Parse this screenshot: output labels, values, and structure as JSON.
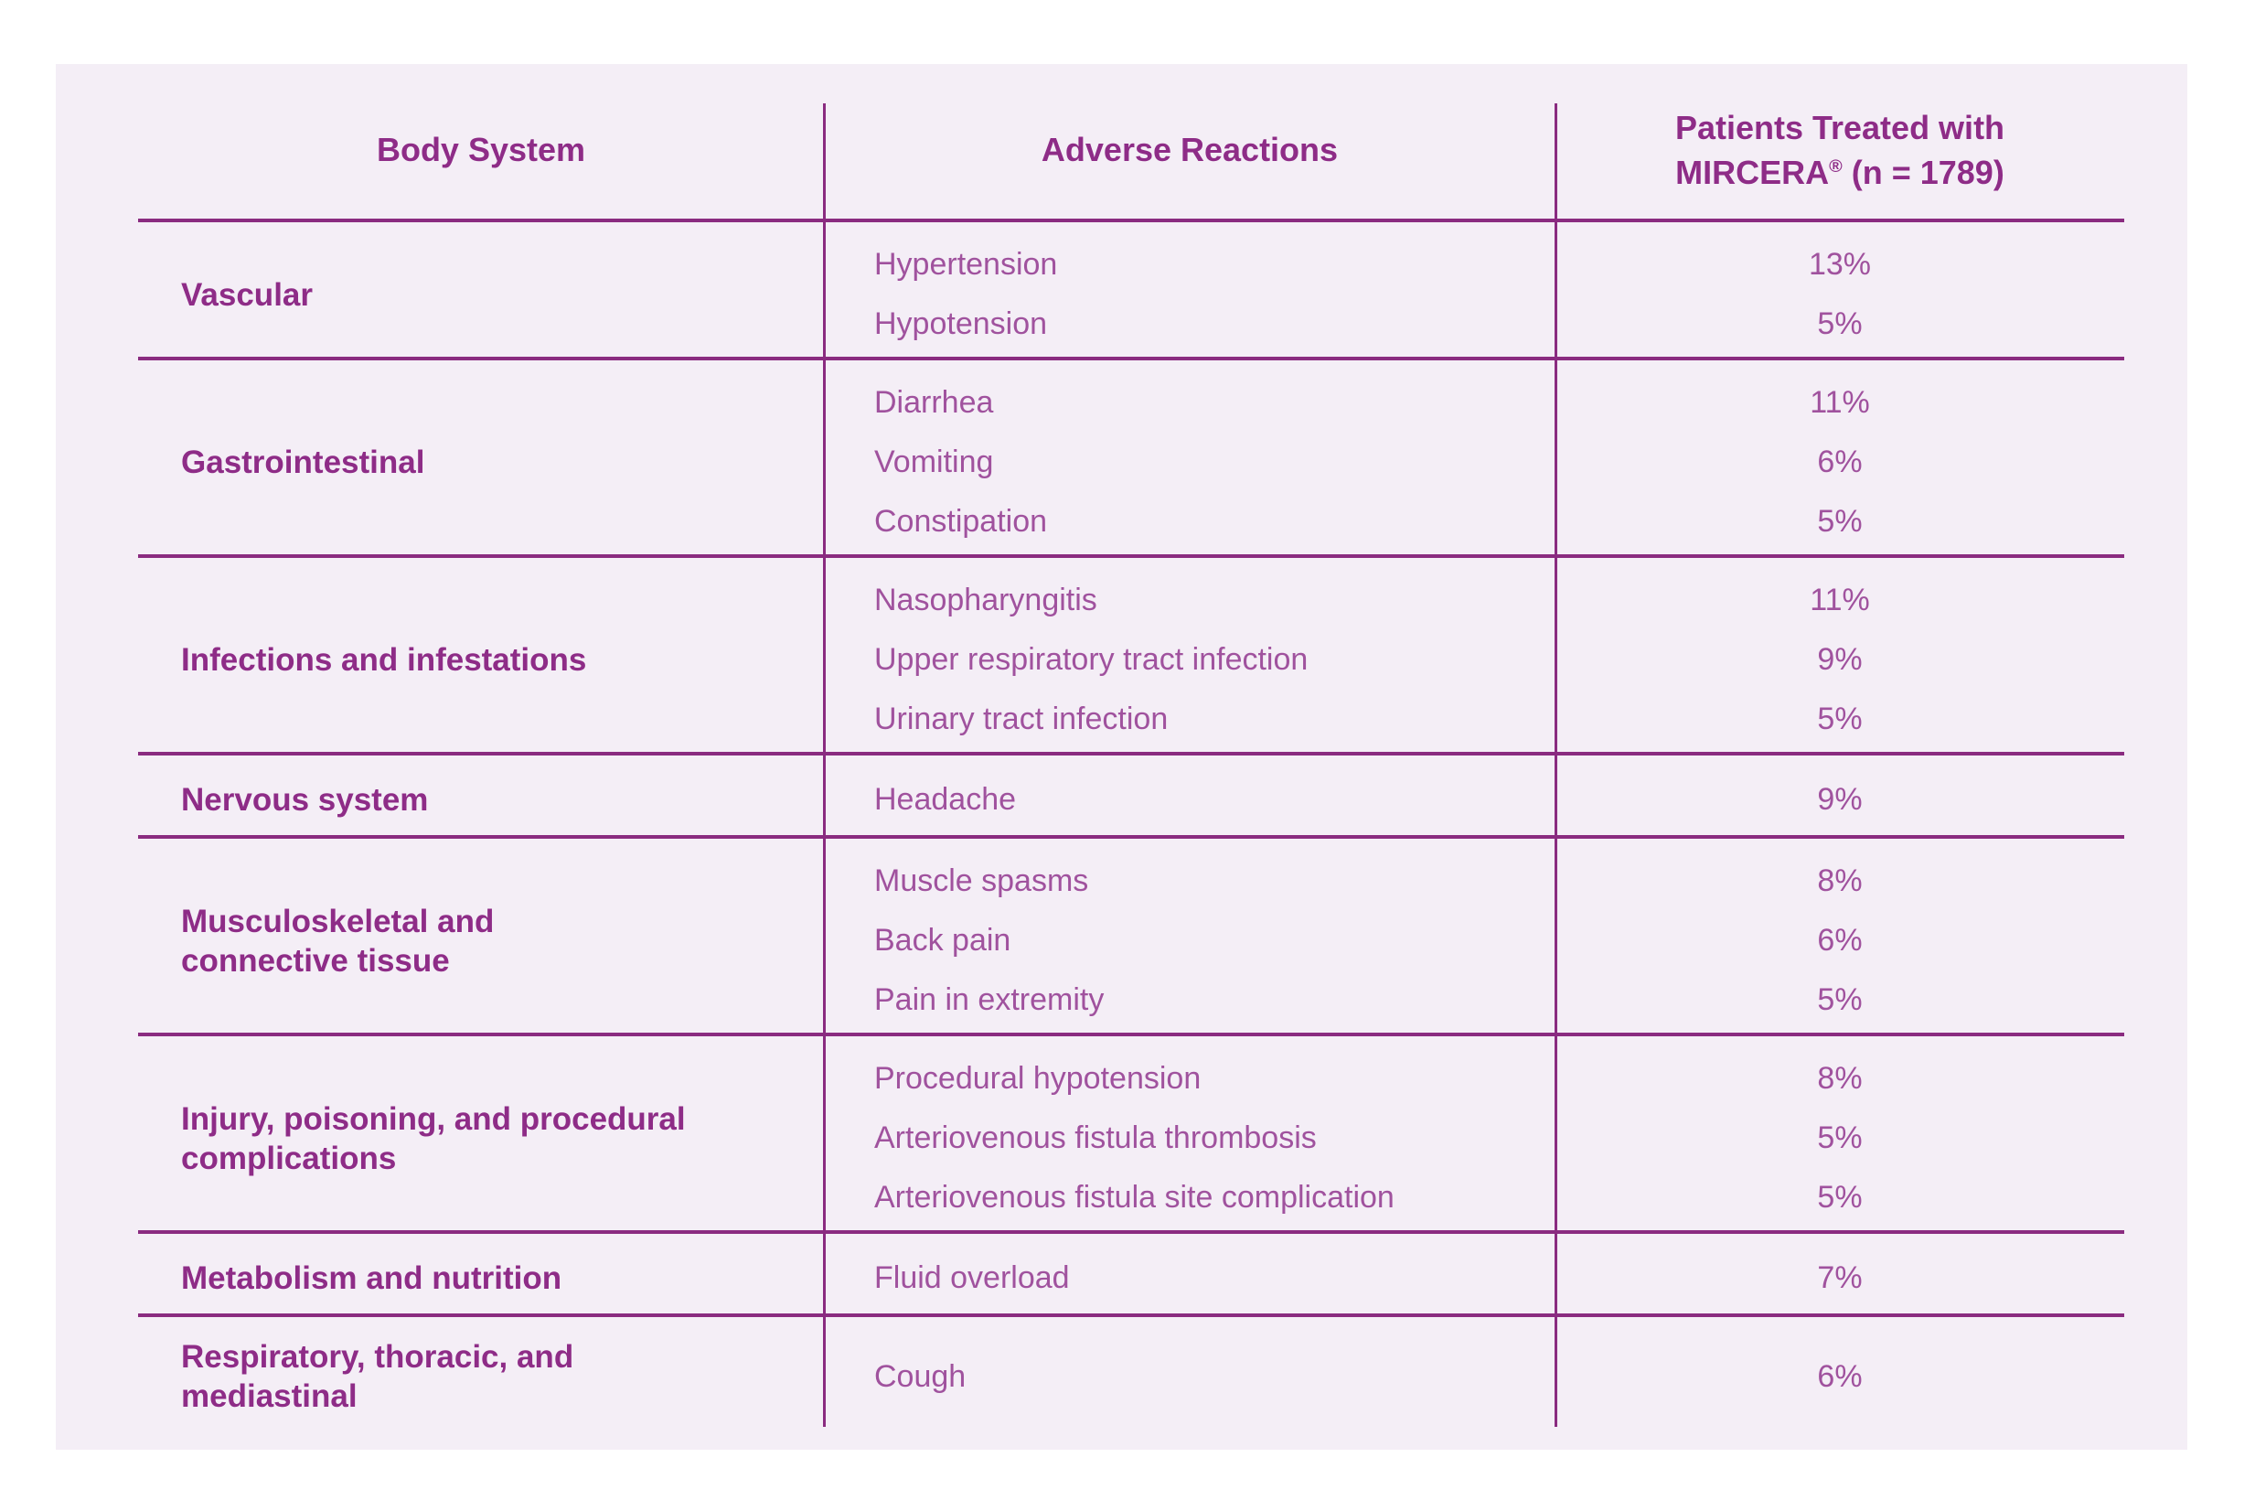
{
  "colors": {
    "page_background": "#ffffff",
    "panel_background": "#f4eef6",
    "line": "#8a2b80",
    "heading_text": "#8e2c87",
    "body_text": "#a0529e"
  },
  "table": {
    "header": {
      "body_system": "Body System",
      "adverse_reactions": "Adverse Reactions",
      "patients_line1": "Patients Treated with",
      "patients_drug": "MIRCERA",
      "patients_reg_mark": "®",
      "patients_line2_rest": " (n = 1789)"
    },
    "rows": [
      {
        "body_system": "Vascular",
        "reactions": [
          "Hypertension",
          "Hypotension"
        ],
        "percentages": [
          "13%",
          "5%"
        ]
      },
      {
        "body_system": "Gastrointestinal",
        "reactions": [
          "Diarrhea",
          "Vomiting",
          "Constipation"
        ],
        "percentages": [
          "11%",
          "6%",
          "5%"
        ]
      },
      {
        "body_system": "Infections and infestations",
        "reactions": [
          "Nasopharyngitis",
          "Upper respiratory tract infection",
          "Urinary tract infection"
        ],
        "percentages": [
          "11%",
          "9%",
          "5%"
        ]
      },
      {
        "body_system": "Nervous system",
        "reactions": [
          "Headache"
        ],
        "percentages": [
          "9%"
        ]
      },
      {
        "body_system": "Musculoskeletal and\nconnective tissue",
        "reactions": [
          "Muscle spasms",
          "Back pain",
          "Pain in extremity"
        ],
        "percentages": [
          "8%",
          "6%",
          "5%"
        ]
      },
      {
        "body_system": "Injury, poisoning, and procedural\ncomplications",
        "reactions": [
          "Procedural hypotension",
          "Arteriovenous fistula thrombosis",
          "Arteriovenous fistula site complication"
        ],
        "percentages": [
          "8%",
          "5%",
          "5%"
        ]
      },
      {
        "body_system": "Metabolism and nutrition",
        "reactions": [
          "Fluid overload"
        ],
        "percentages": [
          "7%"
        ]
      },
      {
        "body_system": "Respiratory, thoracic, and\nmediastinal",
        "reactions": [
          "Cough"
        ],
        "percentages": [
          "6%"
        ]
      }
    ]
  },
  "chart_data": {
    "type": "table",
    "columns": [
      "Body System",
      "Adverse Reactions",
      "Patients Treated with MIRCERA® (n = 1789)"
    ],
    "rows": [
      [
        "Vascular",
        "Hypertension",
        "13%"
      ],
      [
        "Vascular",
        "Hypotension",
        "5%"
      ],
      [
        "Gastrointestinal",
        "Diarrhea",
        "11%"
      ],
      [
        "Gastrointestinal",
        "Vomiting",
        "6%"
      ],
      [
        "Gastrointestinal",
        "Constipation",
        "5%"
      ],
      [
        "Infections and infestations",
        "Nasopharyngitis",
        "11%"
      ],
      [
        "Infections and infestations",
        "Upper respiratory tract infection",
        "9%"
      ],
      [
        "Infections and infestations",
        "Urinary tract infection",
        "5%"
      ],
      [
        "Nervous system",
        "Headache",
        "9%"
      ],
      [
        "Musculoskeletal and connective tissue",
        "Muscle spasms",
        "8%"
      ],
      [
        "Musculoskeletal and connective tissue",
        "Back pain",
        "6%"
      ],
      [
        "Musculoskeletal and connective tissue",
        "Pain in extremity",
        "5%"
      ],
      [
        "Injury, poisoning, and procedural complications",
        "Procedural hypotension",
        "8%"
      ],
      [
        "Injury, poisoning, and procedural complications",
        "Arteriovenous fistula thrombosis",
        "5%"
      ],
      [
        "Injury, poisoning, and procedural complications",
        "Arteriovenous fistula site complication",
        "5%"
      ],
      [
        "Metabolism and nutrition",
        "Fluid overload",
        "7%"
      ],
      [
        "Respiratory, thoracic, and mediastinal",
        "Cough",
        "6%"
      ]
    ]
  }
}
